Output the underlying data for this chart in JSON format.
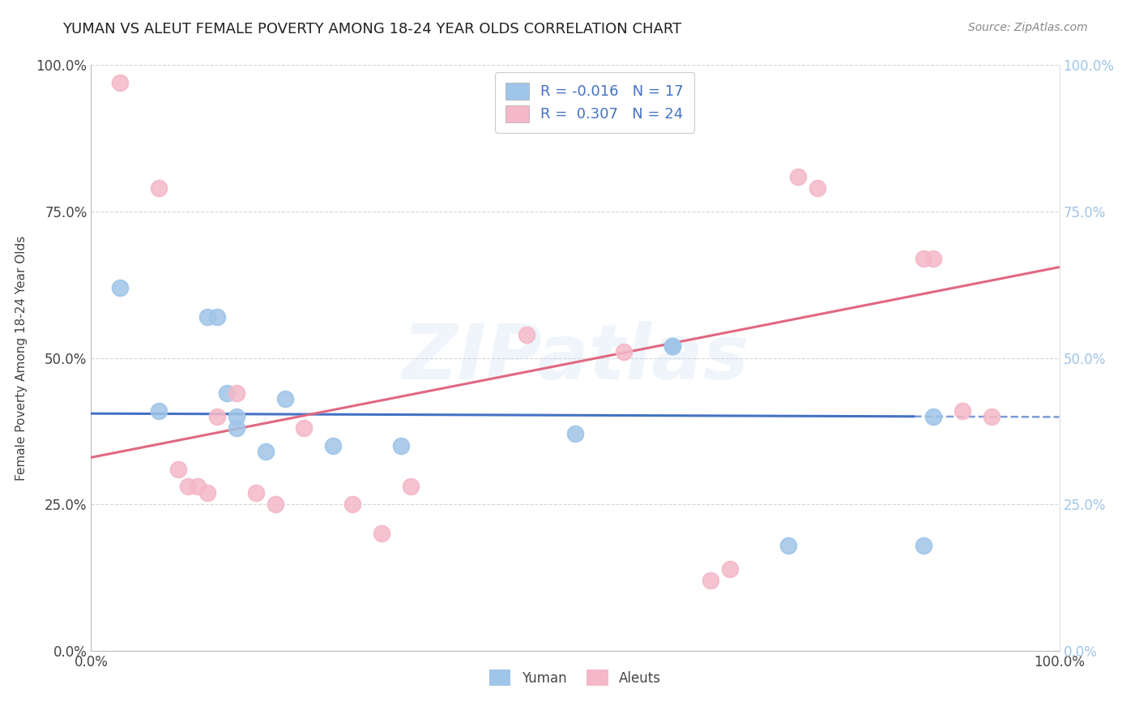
{
  "title": "YUMAN VS ALEUT FEMALE POVERTY AMONG 18-24 YEAR OLDS CORRELATION CHART",
  "source": "Source: ZipAtlas.com",
  "ylabel": "Female Poverty Among 18-24 Year Olds",
  "xlim": [
    0.0,
    1.0
  ],
  "ylim": [
    0.0,
    1.0
  ],
  "x_tick_vals": [
    0.0,
    1.0
  ],
  "x_tick_labels": [
    "0.0%",
    "100.0%"
  ],
  "y_tick_vals": [
    0.0,
    0.25,
    0.5,
    0.75,
    1.0
  ],
  "y_tick_labels": [
    "0.0%",
    "25.0%",
    "50.0%",
    "75.0%",
    "100.0%"
  ],
  "background_color": "#ffffff",
  "watermark": "ZIPatlas",
  "legend_label_blue": "Yuman",
  "legend_label_pink": "Aleuts",
  "R_blue": -0.016,
  "N_blue": 17,
  "R_pink": 0.307,
  "N_pink": 24,
  "blue_scatter_color": "#9fc5e8",
  "pink_scatter_color": "#f4b8c8",
  "blue_line_color": "#4472c4",
  "pink_line_color": "#e06880",
  "grid_color": "#cccccc",
  "yuman_x": [
    0.03,
    0.07,
    0.12,
    0.13,
    0.14,
    0.15,
    0.15,
    0.18,
    0.2,
    0.25,
    0.32,
    0.5,
    0.6,
    0.6,
    0.72,
    0.86,
    0.87
  ],
  "yuman_y": [
    0.62,
    0.41,
    0.57,
    0.57,
    0.44,
    0.38,
    0.4,
    0.34,
    0.43,
    0.35,
    0.35,
    0.37,
    0.52,
    0.52,
    0.18,
    0.18,
    0.4
  ],
  "aleut_x": [
    0.03,
    0.07,
    0.09,
    0.1,
    0.11,
    0.12,
    0.13,
    0.15,
    0.17,
    0.19,
    0.22,
    0.27,
    0.3,
    0.33,
    0.45,
    0.55,
    0.64,
    0.66,
    0.73,
    0.75,
    0.86,
    0.87,
    0.9,
    0.93
  ],
  "aleut_y": [
    0.97,
    0.79,
    0.31,
    0.28,
    0.28,
    0.27,
    0.4,
    0.44,
    0.27,
    0.25,
    0.38,
    0.25,
    0.2,
    0.28,
    0.54,
    0.51,
    0.12,
    0.14,
    0.81,
    0.79,
    0.67,
    0.67,
    0.41,
    0.4
  ]
}
